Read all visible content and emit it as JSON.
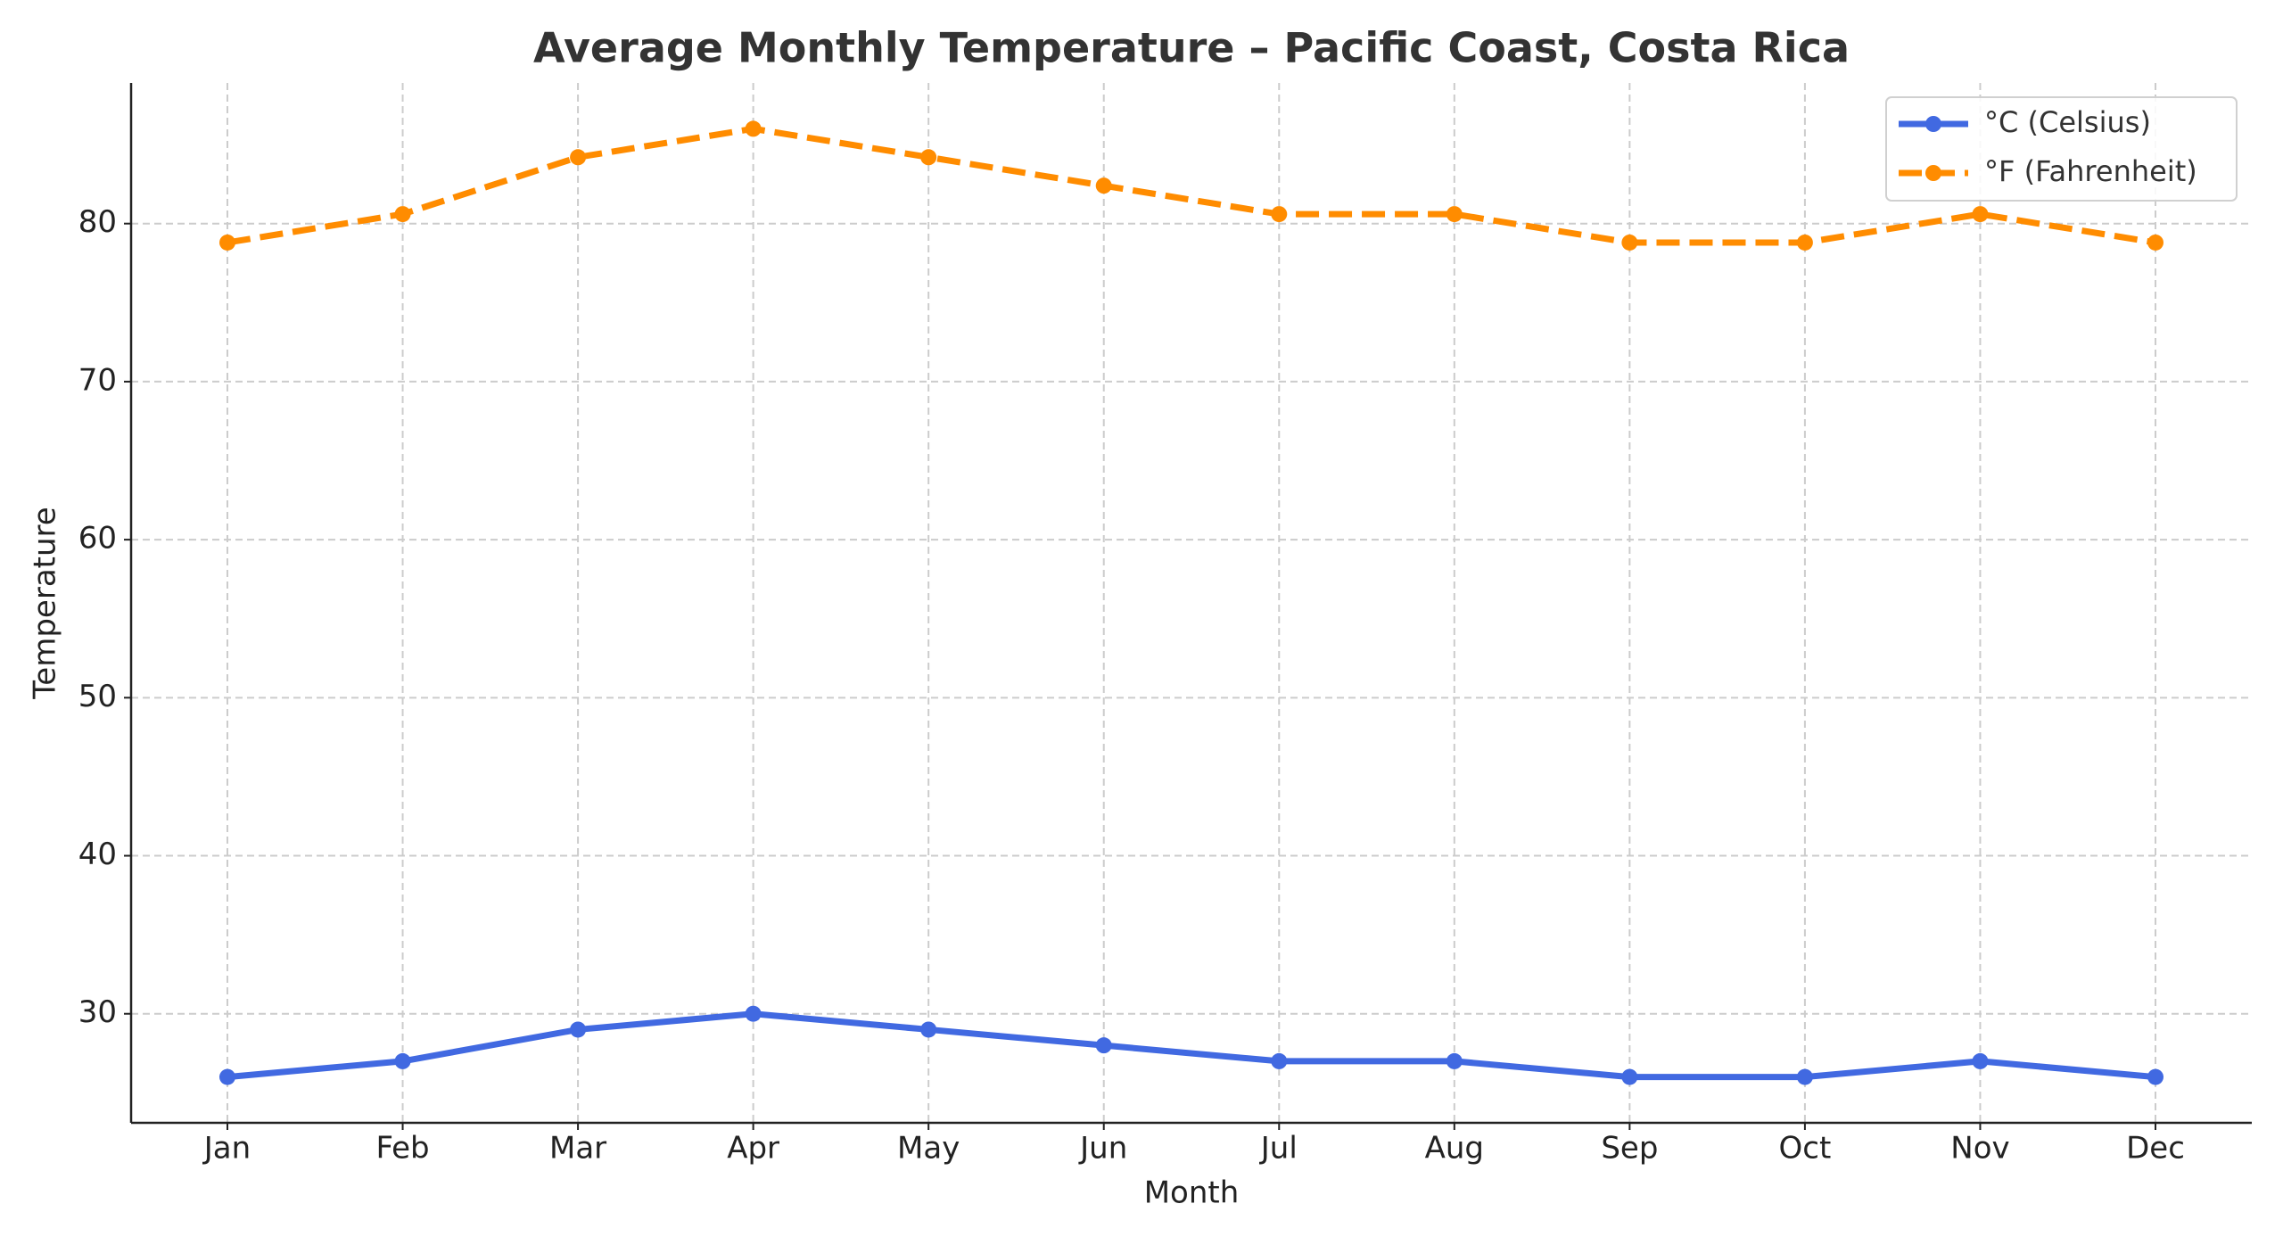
{
  "chart_data": {
    "type": "line",
    "title": "Average Monthly Temperature – Pacific Coast, Costa Rica",
    "x_label": "Month",
    "y_label": "Temperature",
    "categories": [
      "Jan",
      "Feb",
      "Mar",
      "Apr",
      "May",
      "Jun",
      "Jul",
      "Aug",
      "Sep",
      "Oct",
      "Nov",
      "Dec"
    ],
    "series": [
      {
        "name": "°C (Celsius)",
        "color": "#4169e1",
        "dashed": false,
        "values": [
          26,
          27,
          29,
          30,
          29,
          28,
          27,
          27,
          26,
          26,
          27,
          26
        ]
      },
      {
        "name": "°F (Fahrenheit)",
        "color": "#ff8c00",
        "dashed": true,
        "values": [
          78.8,
          80.6,
          84.2,
          86,
          84.2,
          82.4,
          80.6,
          80.6,
          78.8,
          78.8,
          80.6,
          78.8
        ]
      }
    ],
    "ylim": [
      23.1,
      88.9
    ],
    "yticks": [
      30,
      40,
      50,
      60,
      70,
      80
    ],
    "grid": true,
    "legend": "upper right"
  }
}
